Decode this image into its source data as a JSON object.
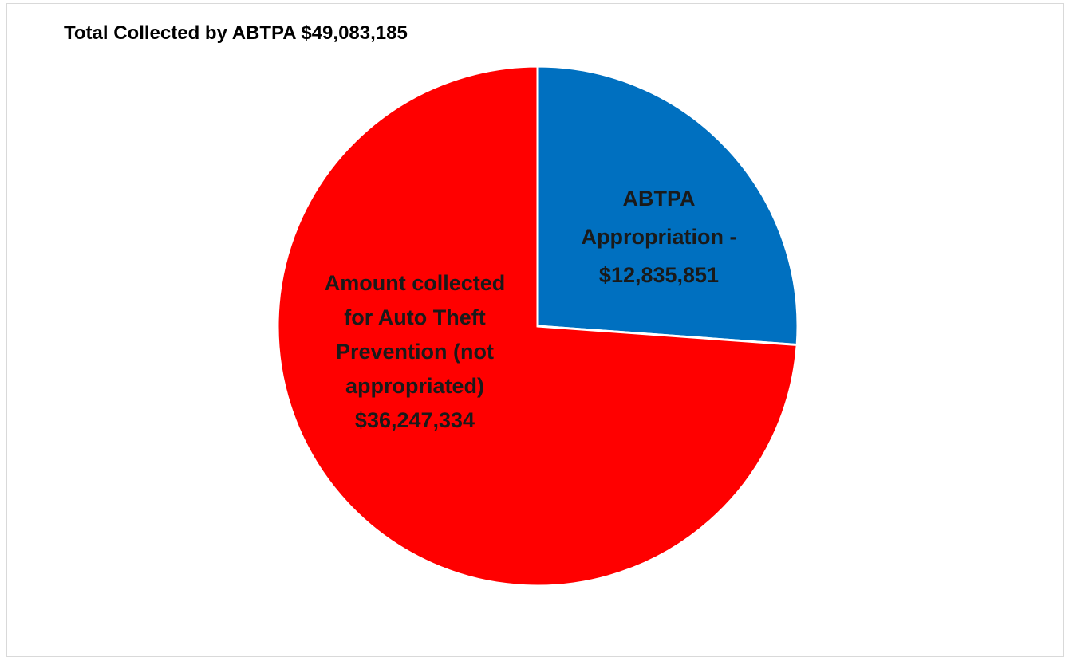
{
  "chart_data": {
    "type": "pie",
    "title": "Total Collected by ABTPA $49,083,185",
    "slices": [
      {
        "name": "ABTPA Appropriation",
        "value": 12835851,
        "color": "#0070C0",
        "label_lines": [
          "ABTPA",
          "Appropriation -",
          "$12,835,851"
        ]
      },
      {
        "name": "Amount collected for Auto Theft Prevention (not appropriated)",
        "value": 36247334,
        "color": "#FF0000",
        "label_lines": [
          "Amount collected",
          "for Auto Theft",
          "Prevention (not",
          "appropriated)",
          "$36,247,334"
        ]
      }
    ],
    "legend": "none"
  }
}
